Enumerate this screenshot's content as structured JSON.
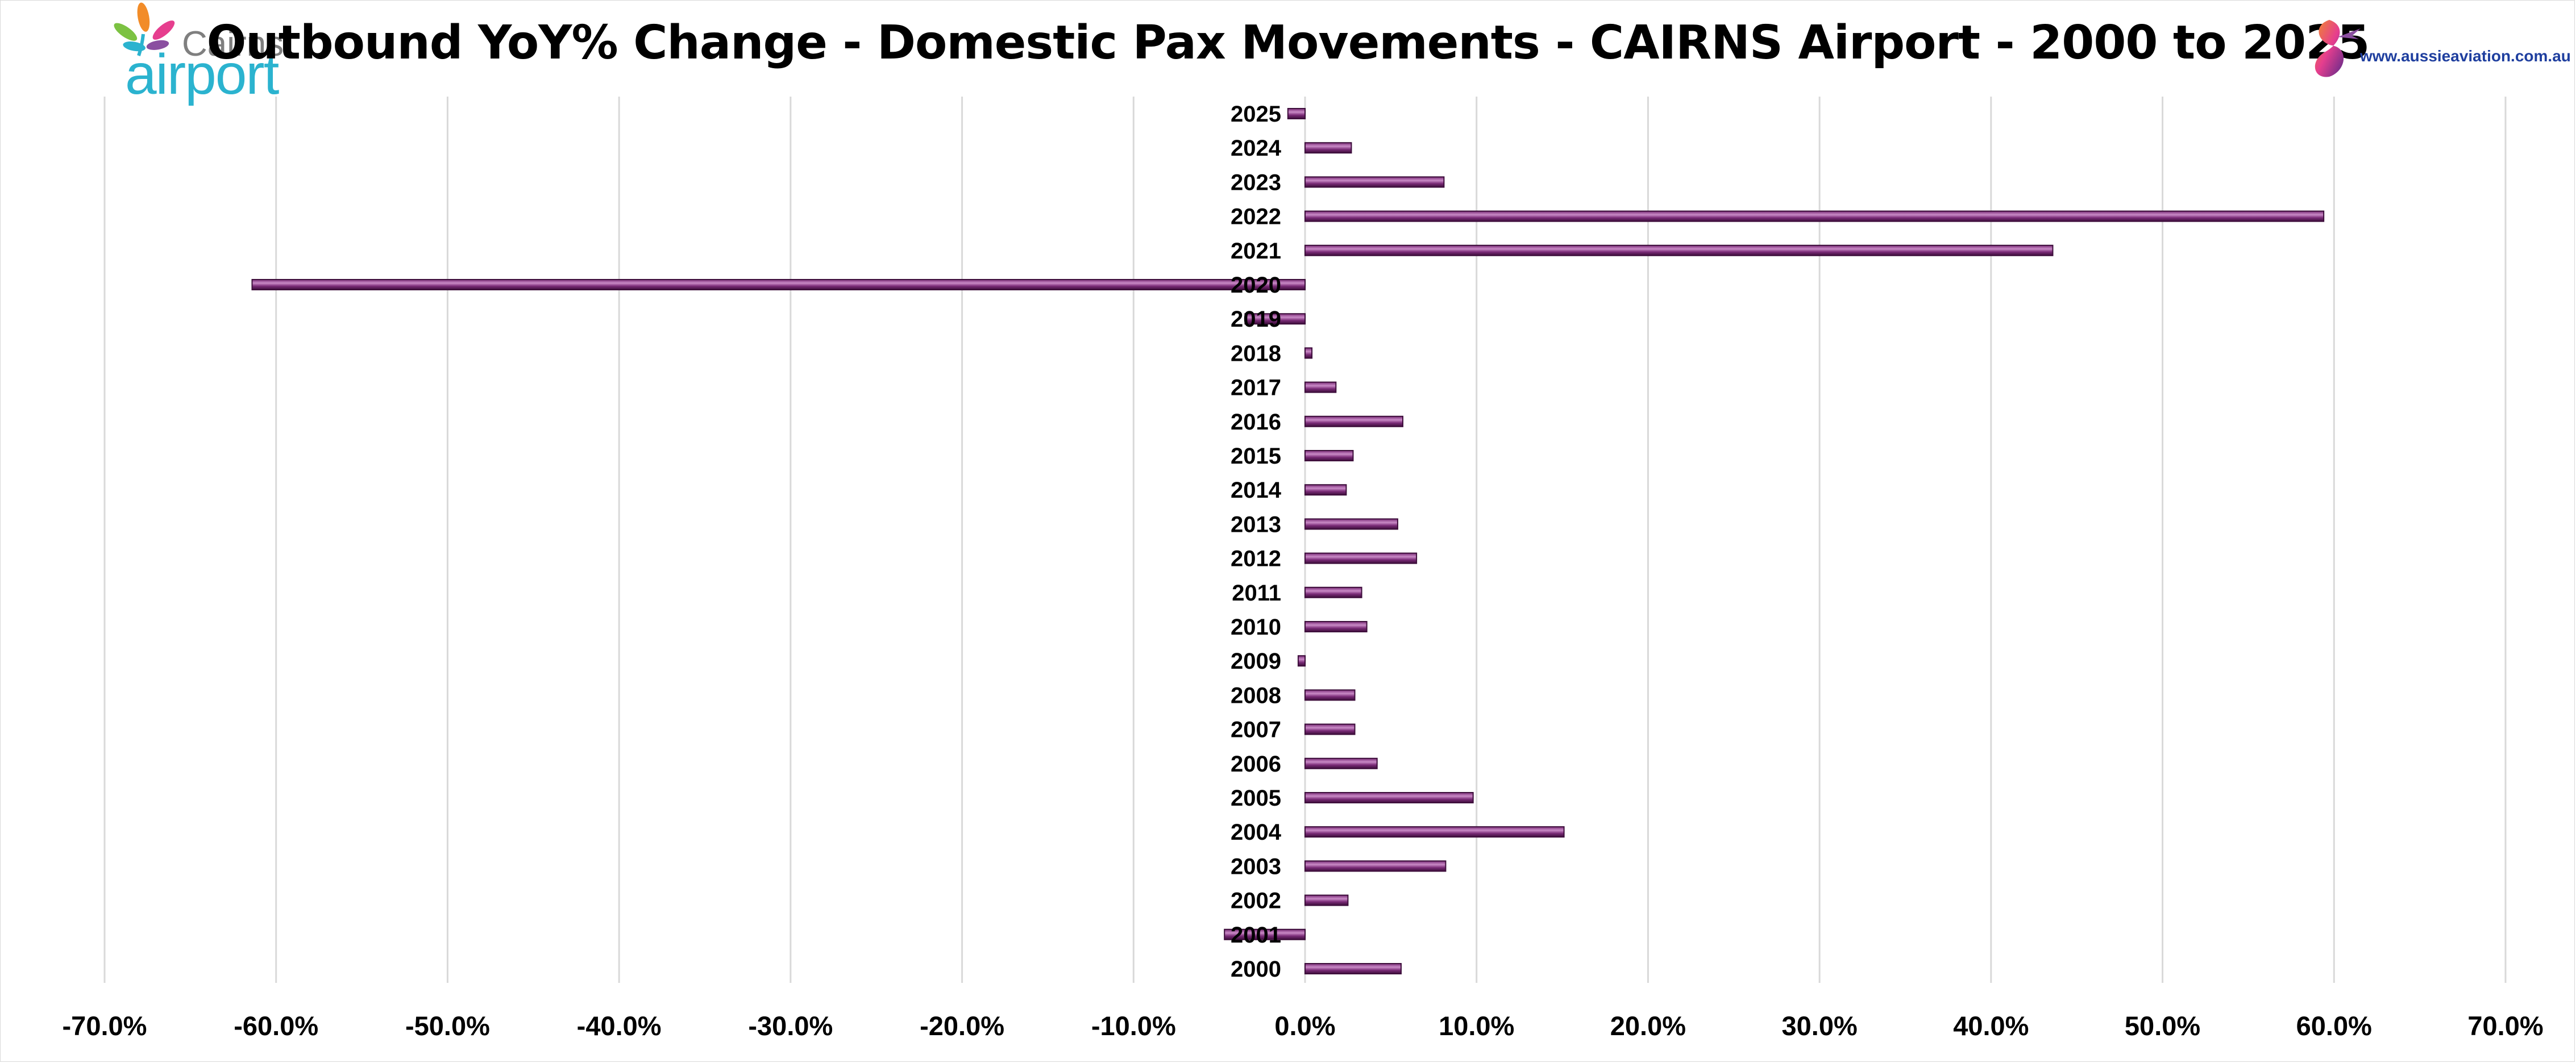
{
  "title": "Outbound YoY% Change - Domestic Pax Movements - CAIRNS Airport - 2000 to 2025",
  "logos": {
    "left_word_top": "Cairns",
    "left_word_bottom": "airport",
    "right_url": "www.aussieaviation.com.au"
  },
  "colors": {
    "bar_fill": "#7a2b77",
    "bar_highlight": "#c98ac6",
    "bar_edge": "#3d0e3b",
    "grid": "#d9d9d9",
    "logo_teal": "#2bb3cf"
  },
  "chart_data": {
    "type": "bar",
    "orientation": "horizontal",
    "title": "Outbound YoY% Change - Domestic Pax Movements - CAIRNS Airport - 2000 to 2025",
    "xlabel": "",
    "ylabel": "",
    "xlim": [
      -70,
      70
    ],
    "x_ticks": [
      -70,
      -60,
      -50,
      -40,
      -30,
      -20,
      -10,
      0,
      10,
      20,
      30,
      40,
      50,
      60,
      70
    ],
    "x_tick_labels": [
      "-70.0%",
      "-60.0%",
      "-50.0%",
      "-40.0%",
      "-30.0%",
      "-20.0%",
      "-10.0%",
      "0.0%",
      "10.0%",
      "20.0%",
      "30.0%",
      "40.0%",
      "50.0%",
      "60.0%",
      "70.0%"
    ],
    "grid": true,
    "legend": "none",
    "categories": [
      "2000",
      "2001",
      "2002",
      "2003",
      "2004",
      "2005",
      "2006",
      "2007",
      "2008",
      "2009",
      "2010",
      "2011",
      "2012",
      "2013",
      "2014",
      "2015",
      "2016",
      "2017",
      "2018",
      "2019",
      "2020",
      "2021",
      "2022",
      "2023",
      "2024",
      "2025"
    ],
    "values": [
      5.6,
      -4.7,
      2.5,
      8.2,
      15.1,
      9.8,
      4.2,
      2.9,
      2.9,
      -0.4,
      3.6,
      3.3,
      6.5,
      5.4,
      2.4,
      2.8,
      5.7,
      1.8,
      0.4,
      -3.5,
      -61.4,
      43.6,
      59.4,
      8.1,
      2.7,
      -1.0
    ]
  }
}
